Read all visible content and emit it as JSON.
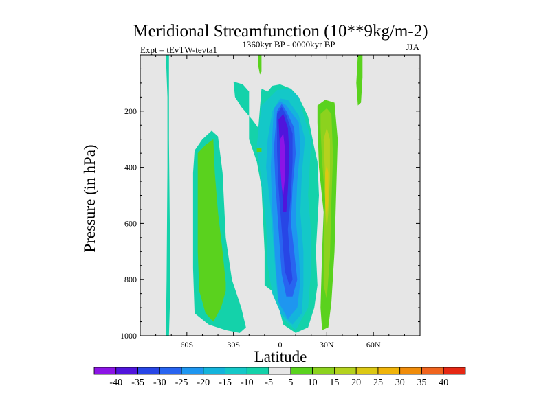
{
  "chart_data": {
    "type": "contour",
    "title": "Meridional Streamfunction (10**9kg/m-2)",
    "left_string": "Expt = tEvTW-tevta1",
    "center_string": "1360kyr BP - 0000kyr BP",
    "right_string": "JJA",
    "xlabel": "Latitude",
    "ylabel": "Pressure (in hPa)",
    "xlim": [
      -90,
      90
    ],
    "ylim": [
      0,
      1000
    ],
    "y_reversed": true,
    "x_ticks": [
      {
        "value": -60,
        "label": "60S"
      },
      {
        "value": -30,
        "label": "30S"
      },
      {
        "value": 0,
        "label": "0"
      },
      {
        "value": 30,
        "label": "30N"
      },
      {
        "value": 60,
        "label": "60N"
      }
    ],
    "y_ticks": [
      {
        "value": 200,
        "label": "200"
      },
      {
        "value": 400,
        "label": "400"
      },
      {
        "value": 600,
        "label": "600"
      },
      {
        "value": 800,
        "label": "800"
      },
      {
        "value": 1000,
        "label": "1000"
      }
    ],
    "background_color": "#e6e6e6",
    "levels": [
      -40,
      -35,
      -30,
      -25,
      -20,
      -15,
      -10,
      -5,
      5,
      10,
      15,
      20,
      25,
      30,
      35,
      40
    ],
    "colorbar_colors": [
      "#8c14e6",
      "#5014dc",
      "#2846e6",
      "#2864f0",
      "#1e96f0",
      "#14b4dc",
      "#14c8c8",
      "#14d2aa",
      "#e6e6e6",
      "#5ad21e",
      "#8cd21e",
      "#b4d21e",
      "#dcc814",
      "#f0b40a",
      "#f08c0a",
      "#f0641e",
      "#e62814"
    ],
    "contour_regions": [
      {
        "name": "mid-lat-south-band",
        "level_index": 7,
        "points": [
          [
            -73.5,
            0
          ],
          [
            -71.5,
            0
          ],
          [
            -71.5,
            300
          ],
          [
            -71,
            600
          ],
          [
            -71,
            900
          ],
          [
            -71.5,
            1000
          ],
          [
            -73.5,
            1000
          ],
          [
            -73,
            800
          ],
          [
            -72.5,
            400
          ],
          [
            -72.5,
            150
          ]
        ]
      },
      {
        "name": "southern-cell-outer",
        "level_index": 7,
        "points": [
          [
            -55,
            340
          ],
          [
            -50,
            300
          ],
          [
            -44,
            270
          ],
          [
            -40,
            290
          ],
          [
            -37,
            420
          ],
          [
            -35,
            650
          ],
          [
            -31,
            800
          ],
          [
            -25,
            900
          ],
          [
            -22,
            970
          ],
          [
            -26,
            990
          ],
          [
            -35,
            980
          ],
          [
            -46,
            960
          ],
          [
            -55,
            920
          ],
          [
            -56,
            760
          ],
          [
            -56,
            560
          ],
          [
            -56,
            420
          ]
        ]
      },
      {
        "name": "southern-cell-inner",
        "level_index": 9,
        "points": [
          [
            -53,
            350
          ],
          [
            -48,
            320
          ],
          [
            -43,
            300
          ],
          [
            -42,
            420
          ],
          [
            -40,
            560
          ],
          [
            -37,
            700
          ],
          [
            -35,
            810
          ],
          [
            -35,
            840
          ],
          [
            -38,
            900
          ],
          [
            -43,
            950
          ],
          [
            -48,
            920
          ],
          [
            -52,
            840
          ],
          [
            -53,
            700
          ],
          [
            -53,
            500
          ]
        ]
      },
      {
        "name": "equatorial-outer",
        "level_index": 7,
        "points": [
          [
            -30,
            95
          ],
          [
            -24,
            105
          ],
          [
            -20,
            130
          ],
          [
            -20,
            300
          ],
          [
            -15,
            380
          ],
          [
            -12,
            470
          ],
          [
            -10,
            700
          ],
          [
            -10,
            820
          ],
          [
            -3,
            850
          ],
          [
            2,
            960
          ],
          [
            10,
            990
          ],
          [
            18,
            970
          ],
          [
            22,
            900
          ],
          [
            24,
            820
          ],
          [
            23,
            700
          ],
          [
            25,
            500
          ],
          [
            24,
            380
          ],
          [
            22,
            330
          ],
          [
            18,
            220
          ],
          [
            12,
            150
          ],
          [
            7,
            120
          ],
          [
            0,
            105
          ],
          [
            -5,
            110
          ],
          [
            -8,
            130
          ],
          [
            -12,
            120
          ],
          [
            -14,
            260
          ],
          [
            -18,
            230
          ],
          [
            -25,
            185
          ],
          [
            -29,
            150
          ]
        ]
      },
      {
        "name": "equatorial-l6",
        "level_index": 6,
        "points": [
          [
            -12,
            180
          ],
          [
            -2,
            125
          ],
          [
            6,
            120
          ],
          [
            12,
            150
          ],
          [
            16,
            230
          ],
          [
            20,
            300
          ],
          [
            19,
            400
          ],
          [
            18,
            500
          ],
          [
            20,
            640
          ],
          [
            20,
            760
          ],
          [
            18,
            900
          ],
          [
            10,
            980
          ],
          [
            2,
            940
          ],
          [
            -5,
            850
          ],
          [
            -8,
            750
          ],
          [
            -9,
            600
          ],
          [
            -12,
            450
          ],
          [
            -15,
            320
          ]
        ]
      },
      {
        "name": "equatorial-l5",
        "level_index": 5,
        "points": [
          [
            -5,
            200
          ],
          [
            0,
            155
          ],
          [
            5,
            160
          ],
          [
            12,
            215
          ],
          [
            16,
            300
          ],
          [
            14,
            420
          ],
          [
            13,
            560
          ],
          [
            15,
            700
          ],
          [
            15,
            820
          ],
          [
            14,
            920
          ],
          [
            8,
            960
          ],
          [
            0,
            920
          ],
          [
            -2,
            840
          ],
          [
            -4,
            700
          ],
          [
            -6,
            550
          ],
          [
            -9,
            400
          ],
          [
            -8,
            300
          ]
        ]
      },
      {
        "name": "equatorial-l4",
        "level_index": 4,
        "points": [
          [
            -4,
            190
          ],
          [
            0,
            165
          ],
          [
            4,
            180
          ],
          [
            12,
            240
          ],
          [
            13,
            330
          ],
          [
            11,
            450
          ],
          [
            10,
            580
          ],
          [
            12,
            700
          ],
          [
            13,
            810
          ],
          [
            11,
            900
          ],
          [
            5,
            940
          ],
          [
            -1,
            880
          ],
          [
            -3,
            740
          ],
          [
            -5,
            560
          ],
          [
            -6,
            400
          ],
          [
            -5,
            280
          ]
        ]
      },
      {
        "name": "equatorial-l3",
        "level_index": 3,
        "points": [
          [
            -2,
            200
          ],
          [
            1,
            175
          ],
          [
            4,
            200
          ],
          [
            9,
            260
          ],
          [
            10,
            350
          ],
          [
            8,
            470
          ],
          [
            7,
            600
          ],
          [
            9,
            700
          ],
          [
            11,
            800
          ],
          [
            8,
            860
          ],
          [
            4,
            860
          ],
          [
            1,
            780
          ],
          [
            -1,
            620
          ],
          [
            -3,
            460
          ],
          [
            -4,
            330
          ]
        ]
      },
      {
        "name": "equatorial-l2",
        "level_index": 2,
        "points": [
          [
            -2,
            210
          ],
          [
            1,
            185
          ],
          [
            4,
            215
          ],
          [
            8,
            280
          ],
          [
            8,
            380
          ],
          [
            7,
            500
          ],
          [
            5,
            620
          ],
          [
            6,
            700
          ],
          [
            8,
            800
          ],
          [
            6,
            820
          ],
          [
            3,
            770
          ],
          [
            1,
            620
          ],
          [
            -1,
            470
          ],
          [
            -2,
            340
          ]
        ]
      },
      {
        "name": "equatorial-l1",
        "level_index": 1,
        "points": [
          [
            -1,
            230
          ],
          [
            2,
            210
          ],
          [
            5,
            260
          ],
          [
            6,
            360
          ],
          [
            5,
            480
          ],
          [
            4,
            560
          ],
          [
            2,
            560
          ],
          [
            1,
            450
          ],
          [
            0,
            340
          ]
        ]
      },
      {
        "name": "equatorial-l0",
        "level_index": 0,
        "points": [
          [
            0,
            300
          ],
          [
            2,
            280
          ],
          [
            3,
            330
          ],
          [
            3,
            440
          ],
          [
            2,
            500
          ],
          [
            1,
            470
          ],
          [
            0,
            390
          ]
        ]
      },
      {
        "name": "northern-cell-outer",
        "level_index": 9,
        "points": [
          [
            24,
            180
          ],
          [
            29,
            160
          ],
          [
            35,
            170
          ],
          [
            37,
            300
          ],
          [
            36,
            500
          ],
          [
            35,
            700
          ],
          [
            33,
            880
          ],
          [
            31,
            970
          ],
          [
            27,
            980
          ],
          [
            26,
            900
          ],
          [
            27,
            700
          ],
          [
            28,
            560
          ],
          [
            25,
            400
          ],
          [
            24,
            240
          ]
        ]
      },
      {
        "name": "northern-cell-l10",
        "level_index": 10,
        "points": [
          [
            26,
            210
          ],
          [
            30,
            190
          ],
          [
            33,
            210
          ],
          [
            34,
            360
          ],
          [
            33,
            520
          ],
          [
            32,
            720
          ],
          [
            30,
            870
          ],
          [
            28,
            820
          ],
          [
            28,
            650
          ],
          [
            29,
            520
          ],
          [
            27,
            380
          ],
          [
            26,
            260
          ]
        ]
      },
      {
        "name": "northern-cell-l11",
        "level_index": 11,
        "points": [
          [
            28,
            300
          ],
          [
            30,
            260
          ],
          [
            32,
            300
          ],
          [
            32,
            440
          ],
          [
            31,
            560
          ],
          [
            30,
            620
          ],
          [
            29,
            560
          ],
          [
            29,
            440
          ]
        ]
      },
      {
        "name": "northern-cell-l12",
        "level_index": 12,
        "points": [
          [
            29,
            420
          ],
          [
            30,
            390
          ],
          [
            31,
            420
          ],
          [
            31,
            520
          ],
          [
            30,
            580
          ],
          [
            29,
            530
          ]
        ]
      },
      {
        "name": "upper-north-strip",
        "level_index": 9,
        "points": [
          [
            50,
            0
          ],
          [
            53,
            0
          ],
          [
            53,
            80
          ],
          [
            52,
            170
          ],
          [
            50,
            180
          ],
          [
            49,
            100
          ]
        ]
      },
      {
        "name": "upper-equator-tongue",
        "level_index": 9,
        "points": [
          [
            -14,
            0
          ],
          [
            -12,
            0
          ],
          [
            -12,
            60
          ],
          [
            -13,
            70
          ],
          [
            -14,
            40
          ]
        ]
      },
      {
        "name": "small-blob-south",
        "level_index": 9,
        "points": [
          [
            -15,
            330
          ],
          [
            -12,
            330
          ],
          [
            -12,
            345
          ],
          [
            -15,
            345
          ]
        ]
      }
    ]
  }
}
